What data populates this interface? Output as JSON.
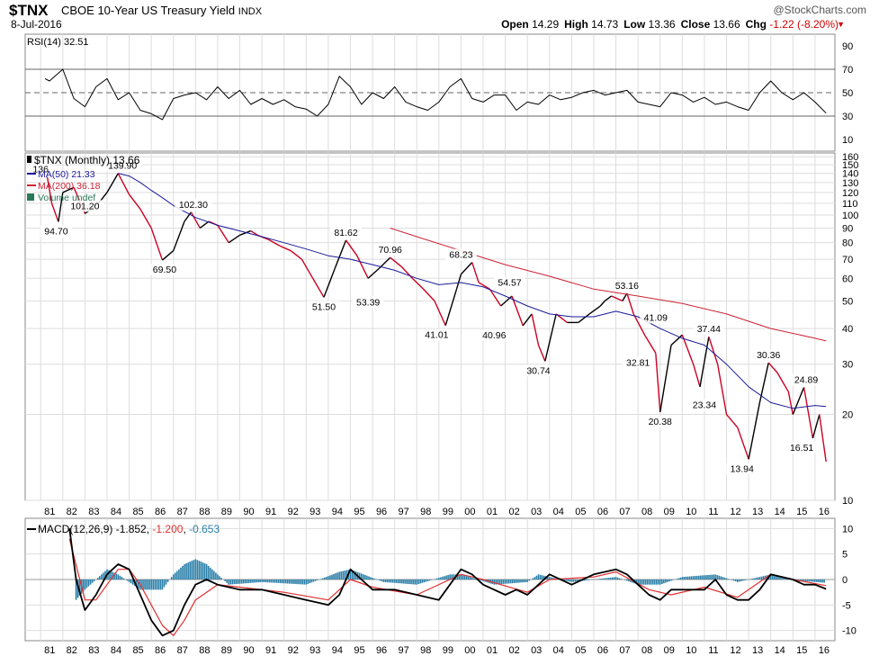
{
  "header": {
    "ticker": "$TNX",
    "name": "CBOE 10-Year US Treasury Yield",
    "exchange": "INDX",
    "date": "8-Jul-2016",
    "brand": "@StockCharts.com",
    "open_label": "Open",
    "open": "14.29",
    "high_label": "High",
    "high": "14.73",
    "low_label": "Low",
    "low": "13.36",
    "close_label": "Close",
    "close": "13.66",
    "chg_label": "Chg",
    "chg": "-1.22 (-8.20%)"
  },
  "colors": {
    "price_up": "#000000",
    "price_down": "#cc0022",
    "ma50": "#1a1a99",
    "ma200": "#cc2233",
    "macd_line": "#000000",
    "signal_line": "#e03030",
    "histogram": "#2a7fa8",
    "grid": "#dddddd",
    "border": "#888888"
  },
  "x_labels": [
    "81",
    "82",
    "83",
    "84",
    "85",
    "86",
    "87",
    "88",
    "89",
    "90",
    "91",
    "92",
    "93",
    "94",
    "95",
    "96",
    "97",
    "98",
    "99",
    "00",
    "01",
    "02",
    "03",
    "04",
    "05",
    "06",
    "07",
    "08",
    "09",
    "10",
    "11",
    "12",
    "13",
    "14",
    "15",
    "16"
  ],
  "chart_data": [
    {
      "type": "line",
      "panel": "RSI",
      "label": "RSI(14) 32.51",
      "y_ticks": [
        10,
        30,
        50,
        70,
        90
      ],
      "ylim": [
        0,
        100
      ],
      "reference_lines": [
        30,
        50,
        70
      ],
      "x": [
        1981.2,
        1981.4,
        1982.0,
        1982.5,
        1983.0,
        1983.5,
        1984.0,
        1984.5,
        1985.0,
        1985.5,
        1986.0,
        1986.5,
        1987.0,
        1987.5,
        1988.0,
        1988.5,
        1989.0,
        1989.5,
        1990.0,
        1990.5,
        1991.0,
        1991.5,
        1992.0,
        1992.5,
        1993.0,
        1993.5,
        1994.0,
        1994.5,
        1995.0,
        1995.5,
        1996.0,
        1996.5,
        1997.0,
        1997.5,
        1998.0,
        1998.5,
        1999.0,
        1999.5,
        2000.0,
        2000.5,
        2001.0,
        2001.5,
        2002.0,
        2002.5,
        2003.0,
        2003.5,
        2004.0,
        2004.5,
        2005.0,
        2005.5,
        2006.0,
        2006.5,
        2007.0,
        2007.5,
        2008.0,
        2008.5,
        2009.0,
        2009.5,
        2010.0,
        2010.5,
        2011.0,
        2011.5,
        2012.0,
        2012.5,
        2013.0,
        2013.5,
        2014.0,
        2014.5,
        2015.0,
        2015.5,
        2016.0,
        2016.5
      ],
      "values": [
        62,
        60,
        70,
        45,
        38,
        55,
        62,
        44,
        50,
        35,
        32,
        27,
        45,
        48,
        50,
        44,
        55,
        45,
        52,
        40,
        45,
        40,
        44,
        38,
        36,
        30,
        40,
        64,
        55,
        40,
        50,
        45,
        55,
        42,
        38,
        35,
        42,
        55,
        62,
        45,
        42,
        48,
        48,
        35,
        42,
        40,
        48,
        44,
        46,
        50,
        52,
        48,
        50,
        52,
        42,
        40,
        38,
        50,
        48,
        42,
        46,
        40,
        42,
        38,
        35,
        50,
        60,
        50,
        44,
        50,
        42,
        32.51
      ]
    },
    {
      "type": "line",
      "panel": "Price",
      "label": "$TNX (Monthly) 13.66",
      "scale": "log",
      "y_ticks": [
        10,
        20,
        30,
        40,
        50,
        60,
        70,
        80,
        90,
        100,
        110,
        120,
        130,
        140,
        150,
        160
      ],
      "ylim": [
        10,
        165
      ],
      "series": [
        {
          "name": "$TNX (Monthly)",
          "x": [
            1981.3,
            1981.5,
            1981.8,
            1982.0,
            1982.5,
            1983.0,
            1983.3,
            1983.7,
            1984.0,
            1984.5,
            1985.0,
            1985.5,
            1986.0,
            1986.5,
            1987.0,
            1987.5,
            1987.8,
            1988.2,
            1988.6,
            1989.0,
            1989.5,
            1990.0,
            1990.5,
            1990.8,
            1991.3,
            1991.8,
            1992.3,
            1992.8,
            1993.3,
            1993.8,
            1994.3,
            1994.8,
            1995.3,
            1995.8,
            1996.3,
            1996.8,
            1997.3,
            1997.8,
            1998.3,
            1998.8,
            1999.3,
            1999.8,
            2000.0,
            2000.5,
            2000.8,
            2001.3,
            2001.8,
            2002.3,
            2002.8,
            2003.2,
            2003.5,
            2003.8,
            2004.3,
            2004.8,
            2005.3,
            2005.8,
            2006.3,
            2006.5,
            2006.8,
            2007.3,
            2007.5,
            2007.8,
            2008.3,
            2008.8,
            2009.0,
            2009.5,
            2010.0,
            2010.5,
            2010.8,
            2011.2,
            2011.6,
            2012.0,
            2012.5,
            2013.0,
            2013.5,
            2013.9,
            2014.3,
            2014.8,
            2015.0,
            2015.5,
            2015.9,
            2016.2,
            2016.5
          ],
          "values": [
            136,
            110,
            94.7,
            120,
            125,
            101.2,
            105,
            112,
            120,
            139.9,
            118,
            105,
            90,
            69.5,
            75,
            95,
            102.3,
            90,
            95,
            92,
            80,
            85,
            88,
            85,
            82,
            78,
            75,
            70,
            60,
            51.5,
            65,
            81.62,
            72,
            60,
            65,
            70.96,
            66,
            60,
            55,
            50,
            41.01,
            55,
            62,
            68.23,
            58,
            55,
            48,
            52,
            40.96,
            45,
            35,
            30.74,
            45,
            42,
            42,
            45,
            48,
            50,
            52,
            50,
            53.16,
            45,
            38,
            32.81,
            20.38,
            35,
            38,
            30,
            25,
            37.44,
            30,
            20,
            18,
            13.94,
            22,
            30.36,
            28,
            24,
            20,
            24.89,
            16.51,
            20,
            13.66
          ]
        },
        {
          "name": "MA(50) 21.33",
          "x": [
            1984.5,
            1985.0,
            1985.5,
            1986.0,
            1986.5,
            1987.0,
            1988.0,
            1989.0,
            1990.0,
            1991.0,
            1992.0,
            1993.0,
            1994.0,
            1995.0,
            1996.0,
            1997.0,
            1998.0,
            1999.0,
            2000.0,
            2001.0,
            2002.0,
            2003.0,
            2004.0,
            2005.0,
            2006.0,
            2007.0,
            2008.0,
            2009.0,
            2010.0,
            2011.0,
            2012.0,
            2013.0,
            2014.0,
            2015.0,
            2016.0,
            2016.5
          ],
          "values": [
            140,
            137,
            130,
            122,
            115,
            108,
            98,
            92,
            88,
            84,
            80,
            76,
            72,
            70,
            67,
            64,
            60,
            57,
            58,
            56,
            52,
            48,
            45,
            44,
            44,
            46,
            44,
            40,
            37,
            35,
            30,
            25,
            22,
            21,
            21.5,
            21.33
          ]
        },
        {
          "name": "MA(200) 36.18",
          "x": [
            1996.8,
            1998.0,
            2000.0,
            2002.0,
            2004.0,
            2006.0,
            2008.0,
            2010.0,
            2012.0,
            2014.0,
            2016.0,
            2016.5
          ],
          "values": [
            90,
            84,
            75,
            67,
            61,
            55,
            52,
            49,
            45,
            40,
            37,
            36.18
          ]
        },
        {
          "name": "Volume undef",
          "x": [],
          "values": []
        }
      ],
      "annotations": [
        {
          "x": 1981.0,
          "value": 136,
          "text": "136"
        },
        {
          "x": 1981.7,
          "value": 94.7,
          "text": "94.70"
        },
        {
          "x": 1983.0,
          "value": 101.2,
          "text": "101.20"
        },
        {
          "x": 1984.7,
          "value": 139.9,
          "text": "139.90"
        },
        {
          "x": 1986.6,
          "value": 69.5,
          "text": "69.50"
        },
        {
          "x": 1987.9,
          "value": 102.3,
          "text": "102.30"
        },
        {
          "x": 1993.8,
          "value": 51.5,
          "text": "51.50"
        },
        {
          "x": 1994.8,
          "value": 81.62,
          "text": "81.62"
        },
        {
          "x": 1995.8,
          "value": 53.39,
          "text": "53.39"
        },
        {
          "x": 1996.8,
          "value": 70.96,
          "text": "70.96"
        },
        {
          "x": 1998.9,
          "value": 41.01,
          "text": "41.01"
        },
        {
          "x": 2000.0,
          "value": 68.23,
          "text": "68.23"
        },
        {
          "x": 2001.5,
          "value": 40.96,
          "text": "40.96"
        },
        {
          "x": 2002.2,
          "value": 54.57,
          "text": "54.57"
        },
        {
          "x": 2003.5,
          "value": 30.74,
          "text": "30.74"
        },
        {
          "x": 2007.5,
          "value": 53.16,
          "text": "53.16"
        },
        {
          "x": 2008.0,
          "value": 32.81,
          "text": "32.81"
        },
        {
          "x": 2008.8,
          "value": 41.09,
          "text": "41.09"
        },
        {
          "x": 2009.0,
          "value": 20.38,
          "text": "20.38"
        },
        {
          "x": 2011.2,
          "value": 37.44,
          "text": "37.44"
        },
        {
          "x": 2011.0,
          "value": 23.34,
          "text": "23.34"
        },
        {
          "x": 2012.7,
          "value": 13.94,
          "text": "13.94"
        },
        {
          "x": 2013.9,
          "value": 30.36,
          "text": "30.36"
        },
        {
          "x": 2015.6,
          "value": 24.89,
          "text": "24.89"
        },
        {
          "x": 2015.4,
          "value": 16.51,
          "text": "16.51"
        }
      ]
    },
    {
      "type": "line",
      "panel": "MACD",
      "label_prefix": "MACD(12,26,9)",
      "label_macd": "-1.852",
      "label_signal": "-1.200",
      "label_hist": "-0.653",
      "y_ticks": [
        -10,
        -5,
        0,
        5,
        10
      ],
      "ylim": [
        -12,
        12
      ],
      "series": [
        {
          "name": "MACD",
          "x": [
            1982.3,
            1982.6,
            1983.0,
            1983.5,
            1984.0,
            1984.5,
            1985.0,
            1985.5,
            1986.0,
            1986.5,
            1987.0,
            1987.5,
            1988.0,
            1988.5,
            1989.0,
            1990.0,
            1991.0,
            1992.0,
            1993.0,
            1994.0,
            1994.5,
            1995.0,
            1995.5,
            1996.0,
            1997.0,
            1998.0,
            1999.0,
            1999.5,
            2000.0,
            2000.5,
            2001.0,
            2002.0,
            2002.5,
            2003.0,
            2003.5,
            2004.0,
            2005.0,
            2006.0,
            2007.0,
            2007.5,
            2008.0,
            2008.5,
            2009.0,
            2009.5,
            2010.0,
            2011.0,
            2011.5,
            2012.0,
            2012.5,
            2013.0,
            2013.5,
            2014.0,
            2015.0,
            2015.5,
            2016.0,
            2016.5
          ],
          "values": [
            10,
            0,
            -6,
            -3,
            1,
            3,
            2,
            -3,
            -8,
            -11,
            -10,
            -5,
            -1,
            0,
            -1,
            -2,
            -2,
            -3,
            -4,
            -5,
            -3,
            2,
            0,
            -2,
            -2,
            -3,
            -4,
            -1,
            2,
            1,
            -1,
            -3,
            -2,
            -3,
            -1,
            1,
            -1,
            1,
            2,
            1,
            -1,
            -3,
            -4,
            -2,
            -2,
            -2,
            0,
            -3,
            -4,
            -4,
            -2,
            1,
            0,
            -1,
            -1,
            -1.852
          ]
        },
        {
          "name": "Signal",
          "x": [
            1982.3,
            1983.0,
            1983.5,
            1984.0,
            1984.5,
            1985.0,
            1985.5,
            1986.0,
            1986.5,
            1987.0,
            1987.5,
            1988.0,
            1989.0,
            1990.0,
            1992.0,
            1994.0,
            1995.0,
            1996.0,
            1998.0,
            2000.0,
            2001.0,
            2003.0,
            2004.0,
            2006.0,
            2007.0,
            2008.5,
            2009.5,
            2011.0,
            2012.5,
            2014.0,
            2015.0,
            2016.5
          ],
          "values": [
            8,
            -4,
            -4,
            -1,
            2,
            2,
            -1,
            -5,
            -9,
            -11,
            -8,
            -4,
            -1,
            -1.5,
            -2.5,
            -4,
            0,
            -1.5,
            -3,
            1,
            0,
            -2.5,
            0,
            0.5,
            1.5,
            -2,
            -3,
            -1.5,
            -3.5,
            1,
            0,
            -1.2
          ]
        },
        {
          "name": "Histogram",
          "x": [
            1982.6,
            1983.0,
            1984.0,
            1984.5,
            1985.5,
            1986.5,
            1987.0,
            1987.5,
            1988.0,
            1988.5,
            1989.5,
            1991.0,
            1993.0,
            1994.5,
            1995.0,
            1996.5,
            1998.0,
            1999.5,
            2000.0,
            2001.5,
            2003.0,
            2003.5,
            2005.0,
            2007.0,
            2008.0,
            2009.0,
            2010.0,
            2011.5,
            2012.5,
            2013.5,
            2014.0,
            2015.5,
            2016.5
          ],
          "values": [
            -4,
            -2,
            2,
            1,
            -2,
            -2,
            1,
            3,
            4,
            3,
            -1,
            -0.5,
            -1,
            1.5,
            2,
            -0.5,
            -1,
            1,
            1,
            -1,
            -0.5,
            1,
            -0.5,
            0.5,
            -1,
            -1,
            0.5,
            1,
            -0.5,
            0.5,
            1,
            -0.3,
            -0.653
          ]
        }
      ]
    }
  ]
}
